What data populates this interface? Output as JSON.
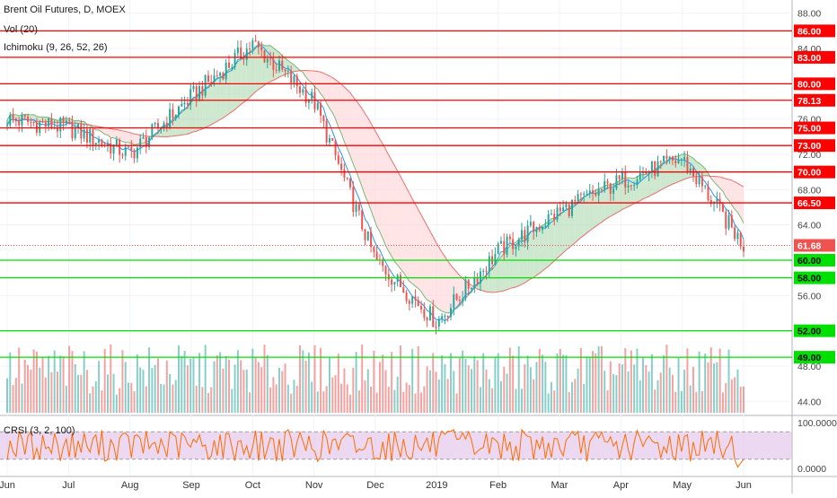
{
  "chart_data": {
    "type": "candlestick",
    "title": "Brent Oil Futures, D, MOEX",
    "indicators": {
      "volume": "Vol (20)",
      "ichimoku": "Ichimoku (9, 26, 52, 26)",
      "crsi": "CRSI (3, 2, 100)"
    },
    "x_labels": [
      "Jun",
      "Jul",
      "Aug",
      "Sep",
      "Oct",
      "Nov",
      "Dec",
      "2019",
      "Feb",
      "Mar",
      "Apr",
      "May",
      "Jun"
    ],
    "price_axis_ticks": [
      88.0,
      84.0,
      80.0,
      76.0,
      72.0,
      68.0,
      64.0,
      60.0,
      56.0,
      52.0,
      48.0,
      44.0
    ],
    "price_ylim": [
      42.5,
      89.5
    ],
    "crsi_ticks": [
      "100.0000",
      "0.0000"
    ],
    "crsi_ylim": [
      0,
      100
    ],
    "resistance_levels": [
      86.0,
      83.0,
      80.0,
      78.13,
      75.0,
      73.0,
      70.0,
      66.5
    ],
    "support_levels": [
      60.0,
      58.0,
      52.0,
      49.0
    ],
    "level_labels": [
      "86.00",
      "83.00",
      "80.00",
      "78.13",
      "75.00",
      "73.00",
      "70.00",
      "66.50",
      "60.00",
      "58.00",
      "52.00",
      "49.00"
    ],
    "last_price": 61.68,
    "last_price_label": "61.68",
    "monthly_closes": [
      {
        "month": "Jun",
        "close": 76.0
      },
      {
        "month": "Jul",
        "close": 75.0
      },
      {
        "month": "Aug",
        "close": 72.0
      },
      {
        "month": "Sep",
        "close": 78.5
      },
      {
        "month": "Oct",
        "close": 84.5
      },
      {
        "month": "Nov",
        "close": 78.0
      },
      {
        "month": "Dec",
        "close": 60.0
      },
      {
        "month": "2019",
        "close": 53.0
      },
      {
        "month": "Feb",
        "close": 61.0
      },
      {
        "month": "Mar",
        "close": 65.5
      },
      {
        "month": "Apr",
        "close": 69.0
      },
      {
        "month": "May",
        "close": 71.5
      },
      {
        "month": "Jun",
        "close": 61.68
      }
    ],
    "colors": {
      "up": "#26a69a",
      "down": "#ef5350",
      "resistance": "#ff0000",
      "support": "#00e000",
      "crsi_line": "#ff6d00",
      "crsi_band": "#e1bee7",
      "cloud_bull": "#a5d6a7",
      "cloud_bear": "#ffcdd2"
    }
  }
}
